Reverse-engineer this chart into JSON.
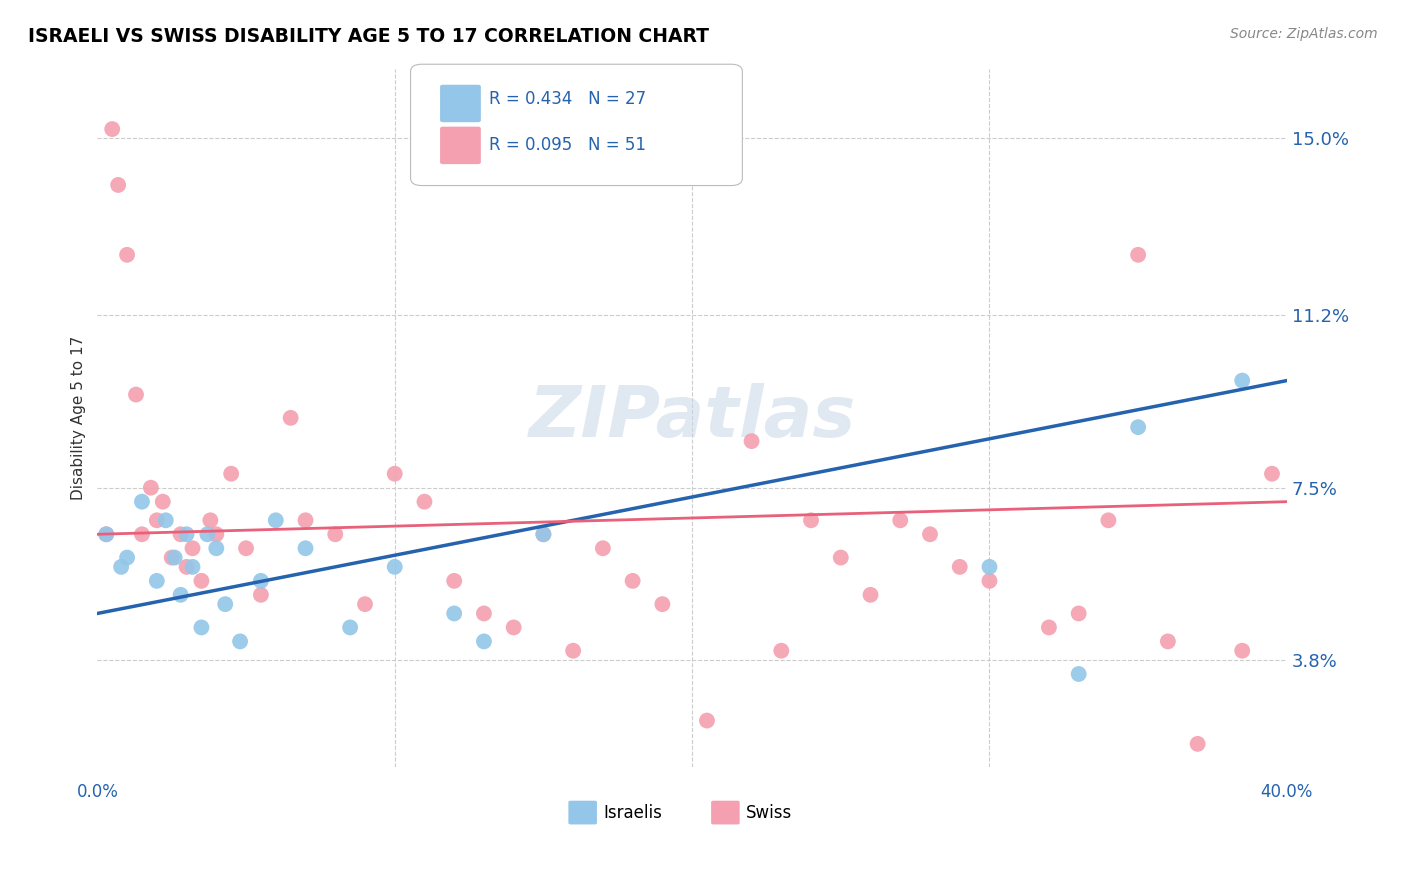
{
  "title": "ISRAELI VS SWISS DISABILITY AGE 5 TO 17 CORRELATION CHART",
  "source": "Source: ZipAtlas.com",
  "ylabel": "Disability Age 5 to 17",
  "ytick_values": [
    3.8,
    7.5,
    11.2,
    15.0
  ],
  "xlim": [
    0.0,
    40.0
  ],
  "ylim": [
    1.5,
    16.5
  ],
  "israeli_R": 0.434,
  "israeli_N": 27,
  "swiss_R": 0.095,
  "swiss_N": 51,
  "israeli_color": "#93c6e8",
  "swiss_color": "#f4a0b0",
  "israeli_line_color": "#2563ae",
  "swiss_line_color": "#e8607a",
  "watermark": "ZIPatlas",
  "israeli_points_x": [
    0.3,
    0.8,
    1.0,
    1.5,
    2.0,
    2.3,
    2.6,
    2.8,
    3.0,
    3.2,
    3.5,
    3.7,
    4.0,
    4.3,
    4.8,
    5.5,
    6.0,
    7.0,
    8.5,
    10.0,
    12.0,
    13.0,
    15.0,
    30.0,
    33.0,
    35.0,
    38.5
  ],
  "israeli_points_y": [
    6.5,
    5.8,
    6.0,
    7.2,
    5.5,
    6.8,
    6.0,
    5.2,
    6.5,
    5.8,
    4.5,
    6.5,
    6.2,
    5.0,
    4.2,
    5.5,
    6.8,
    6.2,
    4.5,
    5.8,
    4.8,
    4.2,
    6.5,
    5.8,
    3.5,
    8.8,
    9.8
  ],
  "swiss_points_x": [
    0.3,
    0.5,
    0.7,
    1.0,
    1.3,
    1.5,
    1.8,
    2.0,
    2.2,
    2.5,
    2.8,
    3.0,
    3.2,
    3.5,
    3.8,
    4.0,
    4.5,
    5.0,
    5.5,
    6.5,
    7.0,
    8.0,
    9.0,
    10.0,
    11.0,
    12.0,
    13.0,
    14.0,
    15.0,
    16.0,
    17.0,
    18.0,
    19.0,
    20.5,
    22.0,
    23.0,
    24.0,
    25.0,
    26.0,
    27.0,
    28.0,
    29.0,
    30.0,
    32.0,
    33.0,
    34.0,
    35.0,
    36.0,
    37.0,
    38.5,
    39.5
  ],
  "swiss_points_y": [
    6.5,
    15.2,
    14.0,
    12.5,
    9.5,
    6.5,
    7.5,
    6.8,
    7.2,
    6.0,
    6.5,
    5.8,
    6.2,
    5.5,
    6.8,
    6.5,
    7.8,
    6.2,
    5.2,
    9.0,
    6.8,
    6.5,
    5.0,
    7.8,
    7.2,
    5.5,
    4.8,
    4.5,
    6.5,
    4.0,
    6.2,
    5.5,
    5.0,
    2.5,
    8.5,
    4.0,
    6.8,
    6.0,
    5.2,
    6.8,
    6.5,
    5.8,
    5.5,
    4.5,
    4.8,
    6.8,
    12.5,
    4.2,
    2.0,
    4.0,
    7.8
  ]
}
